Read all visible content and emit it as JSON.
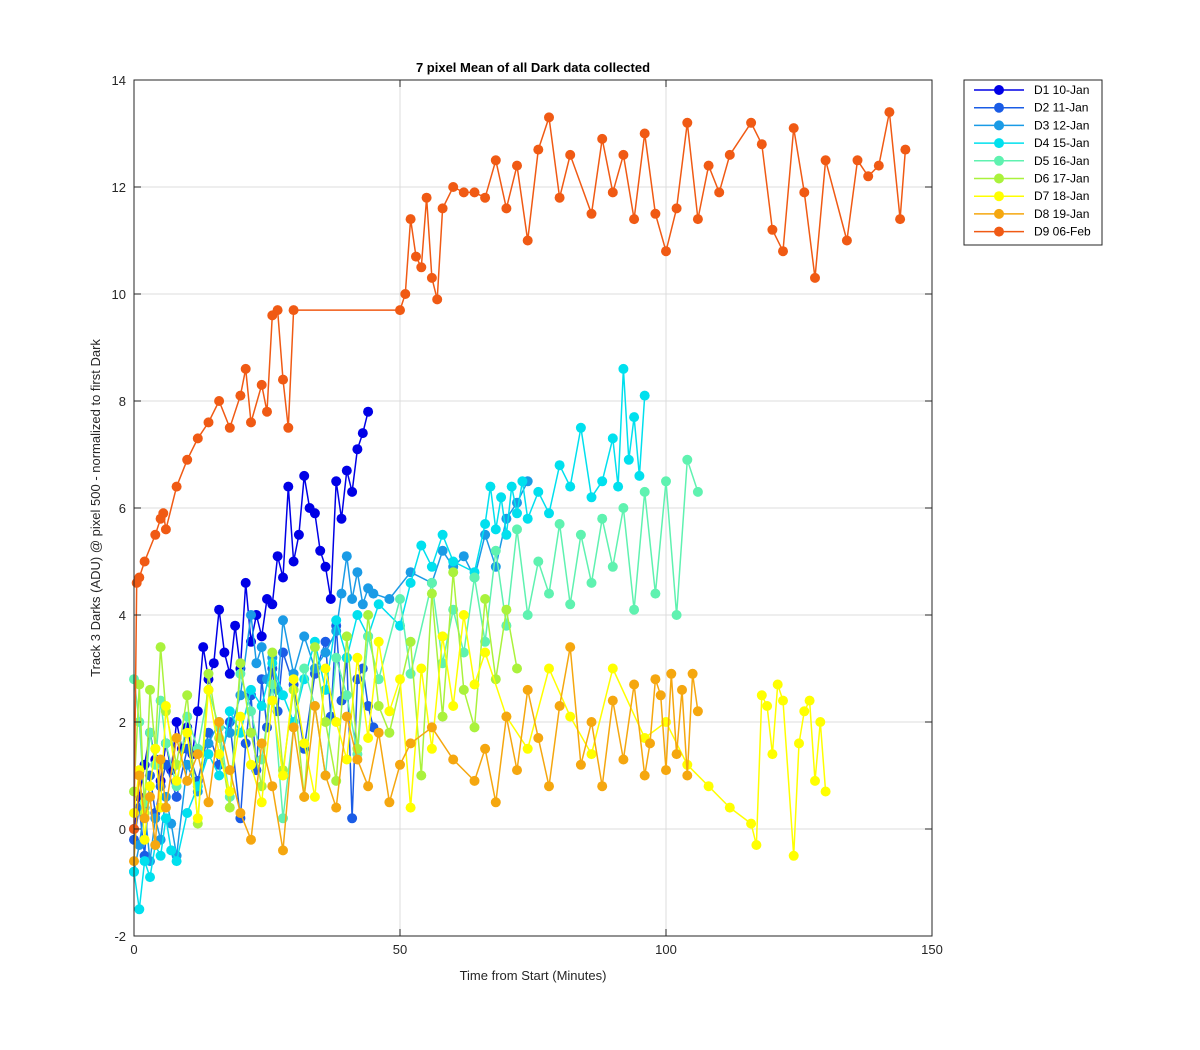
{
  "chart_data": {
    "type": "line",
    "title": "7 pixel Mean of all Dark data collected",
    "xlabel": "Time from Start (Minutes)",
    "ylabel": "Track 3 Darks (ADU) @ pixel 500 - normalized to first Dark",
    "xlim": [
      0,
      150
    ],
    "ylim": [
      -2,
      14
    ],
    "xticks": [
      0,
      50,
      100,
      150
    ],
    "yticks": [
      -2,
      0,
      2,
      4,
      6,
      8,
      10,
      12,
      14
    ],
    "grid": true,
    "legend_position": "top-right",
    "marker": "circle",
    "series": [
      {
        "name": "D1 10-Jan",
        "color": "#0000e6",
        "x": [
          0,
          1,
          2,
          3,
          4,
          5,
          6,
          7,
          8,
          9,
          10,
          11,
          12,
          13,
          14,
          15,
          16,
          17,
          18,
          19,
          20,
          21,
          22,
          23,
          24,
          25,
          26,
          27,
          28,
          29,
          30,
          31,
          32,
          33,
          34,
          35,
          36,
          37,
          38,
          39,
          40,
          41,
          42,
          43,
          44
        ],
        "y": [
          0,
          0.6,
          1.2,
          1.8,
          1.3,
          0.9,
          1.6,
          1.1,
          2.0,
          1.5,
          1.9,
          1.4,
          2.2,
          3.4,
          2.8,
          3.1,
          4.1,
          3.3,
          2.9,
          3.8,
          3.0,
          4.6,
          3.5,
          4.0,
          3.6,
          4.3,
          4.2,
          5.1,
          4.7,
          6.4,
          5.0,
          5.5,
          6.6,
          6.0,
          5.9,
          5.2,
          4.9,
          4.3,
          6.5,
          5.8,
          6.7,
          6.3,
          7.1,
          7.4,
          7.8
        ]
      },
      {
        "name": "D2 11-Jan",
        "color": "#1a5ce6",
        "x": [
          0,
          1,
          2,
          3,
          4,
          5,
          6,
          8,
          10,
          12,
          14,
          16,
          18,
          20,
          21,
          22,
          23,
          24,
          25,
          26,
          27,
          28,
          30,
          32,
          34,
          36,
          37,
          38,
          39,
          40,
          41,
          42,
          43,
          44,
          45
        ],
        "y": [
          -0.2,
          0.4,
          -0.5,
          1.0,
          0.3,
          0.8,
          1.2,
          0.6,
          1.5,
          0.9,
          1.8,
          1.2,
          2.0,
          0.2,
          1.6,
          2.5,
          1.1,
          2.8,
          1.9,
          3.0,
          2.2,
          3.3,
          2.7,
          1.5,
          2.9,
          3.5,
          2.1,
          3.8,
          2.4,
          3.2,
          0.2,
          2.8,
          3.0,
          2.3,
          1.9
        ]
      },
      {
        "name": "D3 12-Jan",
        "color": "#1a9be6",
        "x": [
          0,
          1,
          2,
          3,
          4,
          5,
          6,
          7,
          8,
          10,
          12,
          14,
          16,
          18,
          20,
          22,
          23,
          24,
          25,
          26,
          27,
          28,
          30,
          32,
          34,
          36,
          38,
          39,
          40,
          41,
          42,
          43,
          44,
          45,
          48,
          52,
          56,
          58,
          60,
          62,
          64,
          66,
          68,
          70,
          72,
          74
        ],
        "y": [
          -0.8,
          -0.3,
          0.4,
          -0.6,
          0.2,
          -0.2,
          0.6,
          0.1,
          -0.5,
          1.2,
          0.7,
          1.6,
          2.0,
          1.8,
          2.5,
          4.0,
          3.1,
          3.4,
          2.8,
          3.2,
          2.6,
          3.9,
          2.9,
          3.6,
          3.0,
          3.3,
          3.7,
          4.4,
          5.1,
          4.3,
          4.8,
          4.2,
          4.5,
          4.4,
          4.3,
          4.8,
          4.6,
          5.2,
          4.9,
          5.1,
          4.7,
          5.5,
          4.9,
          5.8,
          6.1,
          6.5
        ]
      },
      {
        "name": "D4 15-Jan",
        "color": "#00e0ee",
        "x": [
          0,
          1,
          2,
          3,
          4,
          5,
          6,
          7,
          8,
          10,
          12,
          14,
          16,
          18,
          20,
          22,
          24,
          26,
          28,
          30,
          32,
          34,
          36,
          38,
          40,
          42,
          44,
          46,
          50,
          52,
          54,
          56,
          58,
          60,
          64,
          66,
          67,
          68,
          69,
          70,
          71,
          72,
          73,
          74,
          76,
          78,
          80,
          82,
          84,
          86,
          88,
          90,
          91,
          92,
          93,
          94,
          95,
          96
        ],
        "y": [
          -0.8,
          -1.5,
          -0.6,
          -0.9,
          -0.3,
          -0.5,
          0.2,
          -0.4,
          -0.6,
          0.3,
          0.8,
          1.4,
          1.0,
          2.2,
          1.8,
          2.6,
          2.3,
          3.1,
          2.5,
          2.0,
          2.8,
          3.5,
          2.6,
          3.9,
          3.2,
          4.0,
          3.6,
          4.2,
          3.8,
          4.6,
          5.3,
          4.9,
          5.5,
          5.0,
          4.8,
          5.7,
          6.4,
          5.6,
          6.2,
          5.5,
          6.4,
          5.9,
          6.5,
          5.8,
          6.3,
          5.9,
          6.8,
          6.4,
          7.5,
          6.2,
          6.5,
          7.3,
          6.4,
          8.6,
          6.9,
          7.7,
          6.6,
          8.1
        ]
      },
      {
        "name": "D5 16-Jan",
        "color": "#5ff2b0",
        "x": [
          0,
          1,
          2,
          3,
          4,
          5,
          6,
          8,
          10,
          12,
          14,
          16,
          18,
          20,
          22,
          24,
          26,
          28,
          30,
          32,
          34,
          36,
          38,
          40,
          42,
          44,
          46,
          50,
          52,
          56,
          58,
          60,
          62,
          64,
          66,
          68,
          70,
          72,
          74,
          76,
          78,
          80,
          82,
          84,
          86,
          88,
          90,
          92,
          94,
          96,
          98,
          100,
          102,
          104,
          106
        ],
        "y": [
          2.8,
          2.0,
          0.5,
          1.8,
          1.2,
          2.4,
          1.6,
          0.8,
          2.1,
          1.5,
          2.6,
          1.9,
          0.6,
          2.9,
          2.2,
          1.3,
          2.7,
          0.2,
          1.9,
          3.0,
          2.3,
          1.0,
          3.2,
          2.5,
          1.4,
          3.6,
          2.8,
          4.3,
          2.9,
          4.6,
          3.1,
          4.1,
          3.3,
          4.7,
          3.5,
          5.2,
          3.8,
          5.6,
          4.0,
          5.0,
          4.4,
          5.7,
          4.2,
          5.5,
          4.6,
          5.8,
          4.9,
          6.0,
          4.1,
          6.3,
          4.4,
          6.5,
          4.0,
          6.9,
          6.3
        ]
      },
      {
        "name": "D6 17-Jan",
        "color": "#aaf23c",
        "x": [
          0,
          1,
          2,
          3,
          4,
          5,
          6,
          8,
          10,
          12,
          14,
          16,
          18,
          20,
          22,
          24,
          26,
          28,
          30,
          32,
          34,
          36,
          38,
          40,
          42,
          44,
          46,
          48,
          52,
          54,
          56,
          58,
          60,
          62,
          64,
          66,
          68,
          70,
          72
        ],
        "y": [
          0.7,
          2.7,
          0.3,
          2.6,
          1.5,
          3.4,
          2.2,
          1.2,
          2.5,
          0.1,
          2.9,
          1.7,
          0.4,
          3.1,
          1.8,
          0.8,
          3.3,
          1.1,
          2.6,
          0.6,
          3.4,
          2.0,
          0.9,
          3.6,
          1.5,
          4.0,
          2.3,
          1.8,
          3.5,
          1.0,
          4.4,
          2.1,
          4.8,
          2.6,
          1.9,
          4.3,
          2.8,
          4.1,
          3.0
        ]
      },
      {
        "name": "D7 18-Jan",
        "color": "#ffff00",
        "x": [
          0,
          1,
          2,
          3,
          4,
          5,
          6,
          8,
          10,
          12,
          14,
          16,
          18,
          20,
          22,
          24,
          26,
          28,
          30,
          32,
          34,
          36,
          38,
          40,
          42,
          44,
          46,
          48,
          50,
          52,
          54,
          56,
          58,
          60,
          62,
          64,
          66,
          70,
          74,
          78,
          82,
          86,
          90,
          96,
          100,
          104,
          108,
          112,
          116,
          117,
          118,
          119,
          120,
          121,
          122,
          124,
          125,
          126,
          127,
          128,
          129,
          130
        ],
        "y": [
          0.3,
          1.1,
          -0.2,
          0.8,
          1.5,
          0.4,
          2.3,
          0.9,
          1.8,
          0.2,
          2.6,
          1.4,
          0.7,
          2.1,
          1.2,
          0.5,
          2.4,
          1.0,
          2.8,
          1.6,
          0.6,
          3.0,
          2.0,
          1.3,
          3.2,
          1.7,
          3.5,
          2.2,
          2.8,
          0.4,
          3.0,
          1.5,
          3.6,
          2.3,
          4.0,
          2.7,
          3.3,
          2.1,
          1.5,
          3.0,
          2.1,
          1.4,
          3.0,
          1.7,
          2.0,
          1.2,
          0.8,
          0.4,
          0.1,
          -0.3,
          2.5,
          2.3,
          1.4,
          2.7,
          2.4,
          -0.5,
          1.6,
          2.2,
          2.4,
          0.9,
          2.0,
          0.7
        ]
      },
      {
        "name": "D8 19-Jan",
        "color": "#f5a70f",
        "x": [
          0,
          1,
          2,
          3,
          4,
          5,
          6,
          8,
          10,
          12,
          14,
          16,
          18,
          20,
          22,
          24,
          26,
          28,
          30,
          32,
          34,
          36,
          38,
          40,
          42,
          44,
          46,
          48,
          50,
          52,
          56,
          60,
          64,
          66,
          68,
          70,
          72,
          74,
          76,
          78,
          80,
          82,
          84,
          86,
          88,
          90,
          92,
          94,
          96,
          97,
          98,
          99,
          100,
          101,
          102,
          103,
          104,
          105,
          106
        ],
        "y": [
          -0.6,
          1.0,
          0.2,
          0.6,
          -0.3,
          1.3,
          0.4,
          1.7,
          0.9,
          1.4,
          0.5,
          2.0,
          1.1,
          0.3,
          -0.2,
          1.6,
          0.8,
          -0.4,
          1.9,
          0.6,
          2.3,
          1.0,
          0.4,
          2.1,
          1.3,
          0.8,
          1.8,
          0.5,
          1.2,
          1.6,
          1.9,
          1.3,
          0.9,
          1.5,
          0.5,
          2.1,
          1.1,
          2.6,
          1.7,
          0.8,
          2.3,
          3.4,
          1.2,
          2.0,
          0.8,
          2.4,
          1.3,
          2.7,
          1.0,
          1.6,
          2.8,
          2.5,
          1.1,
          2.9,
          1.4,
          2.6,
          1.0,
          2.9,
          2.2
        ]
      },
      {
        "name": "D9 06-Feb",
        "color": "#f05a14",
        "x": [
          0,
          0.5,
          1,
          2,
          4,
          5,
          5.5,
          6,
          8,
          10,
          12,
          14,
          16,
          18,
          20,
          21,
          22,
          24,
          25,
          26,
          27,
          28,
          29,
          30,
          50,
          51,
          52,
          53,
          54,
          55,
          56,
          57,
          58,
          60,
          62,
          64,
          66,
          68,
          70,
          72,
          74,
          76,
          78,
          80,
          82,
          86,
          88,
          90,
          92,
          94,
          96,
          98,
          100,
          102,
          104,
          106,
          108,
          110,
          112,
          116,
          118,
          120,
          122,
          124,
          126,
          128,
          130,
          134,
          136,
          138,
          140,
          142,
          144,
          145
        ],
        "y": [
          0,
          4.6,
          4.7,
          5.0,
          5.5,
          5.8,
          5.9,
          5.6,
          6.4,
          6.9,
          7.3,
          7.6,
          8.0,
          7.5,
          8.1,
          8.6,
          7.6,
          8.3,
          7.8,
          9.6,
          9.7,
          8.4,
          7.5,
          9.7,
          9.7,
          10.0,
          11.4,
          10.7,
          10.5,
          11.8,
          10.3,
          9.9,
          11.6,
          12.0,
          11.9,
          11.9,
          11.8,
          12.5,
          11.6,
          12.4,
          11.0,
          12.7,
          13.3,
          11.8,
          12.6,
          11.5,
          12.9,
          11.9,
          12.6,
          11.4,
          13.0,
          11.5,
          10.8,
          11.6,
          13.2,
          11.4,
          12.4,
          11.9,
          12.6,
          13.2,
          12.8,
          11.2,
          10.8,
          13.1,
          11.9,
          10.3,
          12.5,
          11.0,
          12.5,
          12.2,
          12.4,
          13.4,
          11.4,
          12.7
        ]
      }
    ]
  }
}
